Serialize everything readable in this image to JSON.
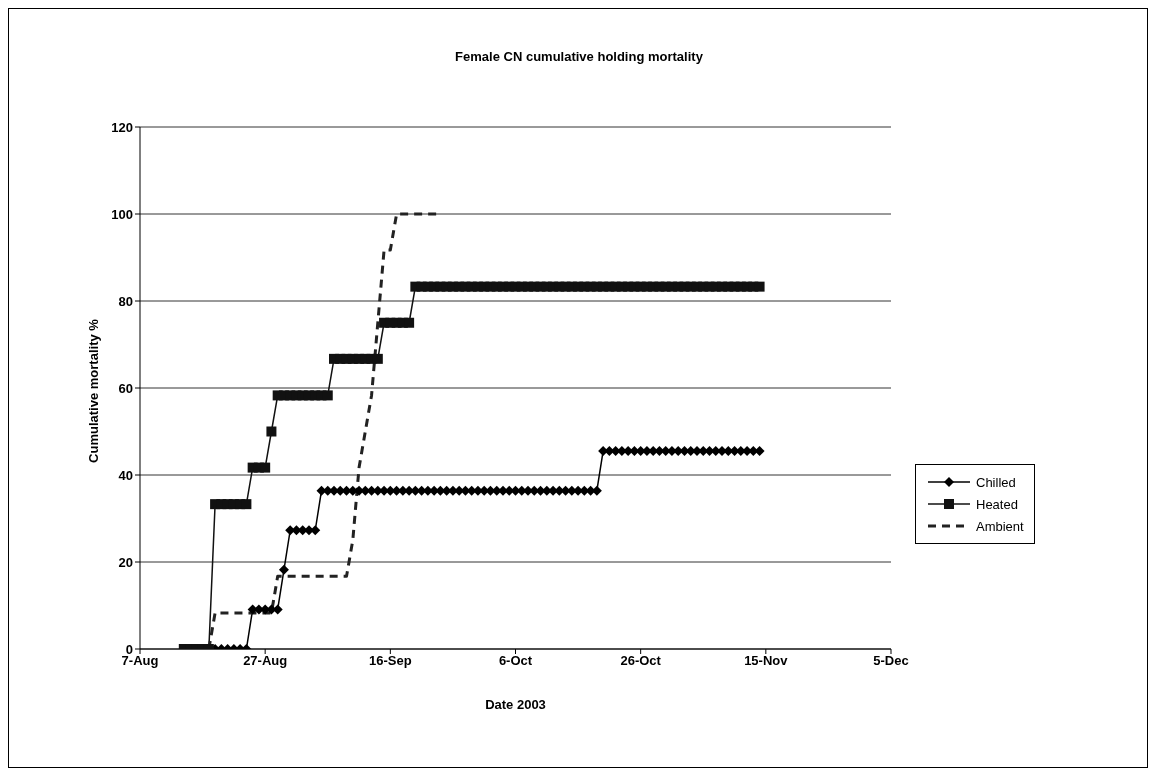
{
  "chart_data": {
    "type": "line",
    "title": "Female CN cumulative holding mortality",
    "xlabel": "Date 2003",
    "ylabel": "Cumulative mortality %",
    "x": [
      "2003-08-14",
      "2003-08-15",
      "2003-08-16",
      "2003-08-17",
      "2003-08-18",
      "2003-08-19",
      "2003-08-20",
      "2003-08-21",
      "2003-08-22",
      "2003-08-23",
      "2003-08-24",
      "2003-08-25",
      "2003-08-26",
      "2003-08-27",
      "2003-08-28",
      "2003-08-29",
      "2003-08-30",
      "2003-08-31",
      "2003-09-01",
      "2003-09-02",
      "2003-09-03",
      "2003-09-04",
      "2003-09-05",
      "2003-09-06",
      "2003-09-07",
      "2003-09-08",
      "2003-09-09",
      "2003-09-10",
      "2003-09-11",
      "2003-09-12",
      "2003-09-13",
      "2003-09-14",
      "2003-09-15",
      "2003-09-16",
      "2003-09-17",
      "2003-09-18",
      "2003-09-19",
      "2003-09-20",
      "2003-09-21",
      "2003-09-22",
      "2003-09-23",
      "2003-09-24",
      "2003-09-25",
      "2003-09-26",
      "2003-09-27",
      "2003-09-28",
      "2003-09-29",
      "2003-09-30",
      "2003-10-01",
      "2003-10-02",
      "2003-10-03",
      "2003-10-04",
      "2003-10-05",
      "2003-10-06",
      "2003-10-07",
      "2003-10-08",
      "2003-10-09",
      "2003-10-10",
      "2003-10-11",
      "2003-10-12",
      "2003-10-13",
      "2003-10-14",
      "2003-10-15",
      "2003-10-16",
      "2003-10-17",
      "2003-10-18",
      "2003-10-19",
      "2003-10-20",
      "2003-10-21",
      "2003-10-22",
      "2003-10-23",
      "2003-10-24",
      "2003-10-25",
      "2003-10-26",
      "2003-10-27",
      "2003-10-28",
      "2003-10-29",
      "2003-10-30",
      "2003-10-31",
      "2003-11-01",
      "2003-11-02",
      "2003-11-03",
      "2003-11-04",
      "2003-11-05",
      "2003-11-06",
      "2003-11-07",
      "2003-11-08",
      "2003-11-09",
      "2003-11-10",
      "2003-11-11",
      "2003-11-12",
      "2003-11-13",
      "2003-11-14"
    ],
    "series": [
      {
        "name": "Chilled",
        "color": "#000000",
        "marker": "diamond",
        "line_style": "solid",
        "values": [
          0,
          0,
          0,
          0,
          0,
          0,
          0,
          0,
          0,
          0,
          0,
          9.1,
          9.1,
          9.1,
          9.1,
          9.1,
          18.2,
          27.3,
          27.3,
          27.3,
          27.3,
          27.3,
          36.4,
          36.4,
          36.4,
          36.4,
          36.4,
          36.4,
          36.4,
          36.4,
          36.4,
          36.4,
          36.4,
          36.4,
          36.4,
          36.4,
          36.4,
          36.4,
          36.4,
          36.4,
          36.4,
          36.4,
          36.4,
          36.4,
          36.4,
          36.4,
          36.4,
          36.4,
          36.4,
          36.4,
          36.4,
          36.4,
          36.4,
          36.4,
          36.4,
          36.4,
          36.4,
          36.4,
          36.4,
          36.4,
          36.4,
          36.4,
          36.4,
          36.4,
          36.4,
          36.4,
          36.4,
          45.5,
          45.5,
          45.5,
          45.5,
          45.5,
          45.5,
          45.5,
          45.5,
          45.5,
          45.5,
          45.5,
          45.5,
          45.5,
          45.5,
          45.5,
          45.5,
          45.5,
          45.5,
          45.5,
          45.5,
          45.5,
          45.5,
          45.5,
          45.5,
          45.5,
          45.5
        ]
      },
      {
        "name": "Heated",
        "color": "#111111",
        "marker": "square",
        "line_style": "solid",
        "values": [
          0,
          0,
          0,
          0,
          0,
          33.3,
          33.3,
          33.3,
          33.3,
          33.3,
          33.3,
          41.7,
          41.7,
          41.7,
          50,
          58.3,
          58.3,
          58.3,
          58.3,
          58.3,
          58.3,
          58.3,
          58.3,
          58.3,
          66.7,
          66.7,
          66.7,
          66.7,
          66.7,
          66.7,
          66.7,
          66.7,
          75,
          75,
          75,
          75,
          75,
          83.3,
          83.3,
          83.3,
          83.3,
          83.3,
          83.3,
          83.3,
          83.3,
          83.3,
          83.3,
          83.3,
          83.3,
          83.3,
          83.3,
          83.3,
          83.3,
          83.3,
          83.3,
          83.3,
          83.3,
          83.3,
          83.3,
          83.3,
          83.3,
          83.3,
          83.3,
          83.3,
          83.3,
          83.3,
          83.3,
          83.3,
          83.3,
          83.3,
          83.3,
          83.3,
          83.3,
          83.3,
          83.3,
          83.3,
          83.3,
          83.3,
          83.3,
          83.3,
          83.3,
          83.3,
          83.3,
          83.3,
          83.3,
          83.3,
          83.3,
          83.3,
          83.3,
          83.3,
          83.3,
          83.3,
          83.3
        ]
      },
      {
        "name": "Ambient",
        "color": "#222222",
        "marker": "none",
        "line_style": "dashed",
        "x": [
          "2003-08-18",
          "2003-08-19",
          "2003-08-28",
          "2003-08-29",
          "2003-09-09",
          "2003-09-10",
          "2003-09-11",
          "2003-09-12",
          "2003-09-13",
          "2003-09-14",
          "2003-09-15",
          "2003-09-16",
          "2003-09-17",
          "2003-09-24"
        ],
        "values": [
          0,
          8.3,
          8.3,
          16.7,
          16.7,
          25,
          41.7,
          50,
          58.3,
          75,
          91.7,
          91.7,
          100,
          100
        ]
      }
    ],
    "xlim": [
      "2003-08-07",
      "2003-12-05"
    ],
    "xticks": [
      {
        "value": "2003-08-07",
        "label": "7-Aug"
      },
      {
        "value": "2003-08-27",
        "label": "27-Aug"
      },
      {
        "value": "2003-09-16",
        "label": "16-Sep"
      },
      {
        "value": "2003-10-06",
        "label": "6-Oct"
      },
      {
        "value": "2003-10-26",
        "label": "26-Oct"
      },
      {
        "value": "2003-11-15",
        "label": "15-Nov"
      },
      {
        "value": "2003-12-05",
        "label": "5-Dec"
      }
    ],
    "ylim": [
      0,
      120
    ],
    "yticks": [
      0,
      20,
      40,
      60,
      80,
      100,
      120
    ],
    "grid": "y",
    "legend": "right"
  }
}
